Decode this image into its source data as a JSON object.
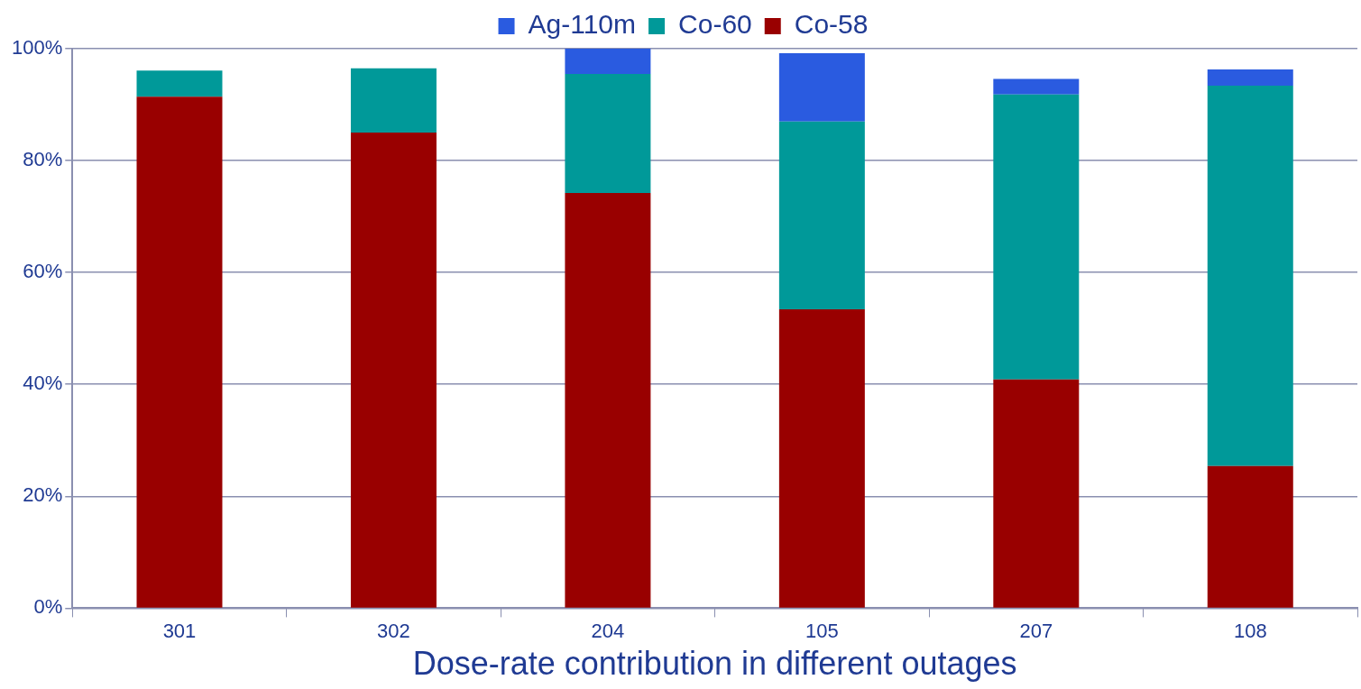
{
  "chart_data": {
    "type": "bar",
    "stacked": true,
    "xlabel": "Dose-rate contribution in different outages",
    "categories": [
      "301",
      "302",
      "204",
      "105",
      "207",
      "108"
    ],
    "series": [
      {
        "name": "Co-58",
        "color": "#990000",
        "values": [
          91.4,
          85.0,
          74.2,
          53.4,
          40.9,
          25.4
        ]
      },
      {
        "name": "Co-60",
        "color": "#009999",
        "values": [
          4.7,
          11.5,
          21.3,
          33.6,
          50.9,
          68.0
        ]
      },
      {
        "name": "Ag-110m",
        "color": "#2a5be0",
        "values": [
          0,
          0,
          4.5,
          12.2,
          2.8,
          2.9
        ]
      }
    ],
    "ylim": [
      0,
      100
    ],
    "yticks": [
      {
        "value": 0,
        "label": "0%"
      },
      {
        "value": 20,
        "label": "20%"
      },
      {
        "value": 40,
        "label": "40%"
      },
      {
        "value": 60,
        "label": "60%"
      },
      {
        "value": 80,
        "label": "80%"
      },
      {
        "value": 100,
        "label": "100%"
      }
    ],
    "grid": "y",
    "legend": "top"
  }
}
